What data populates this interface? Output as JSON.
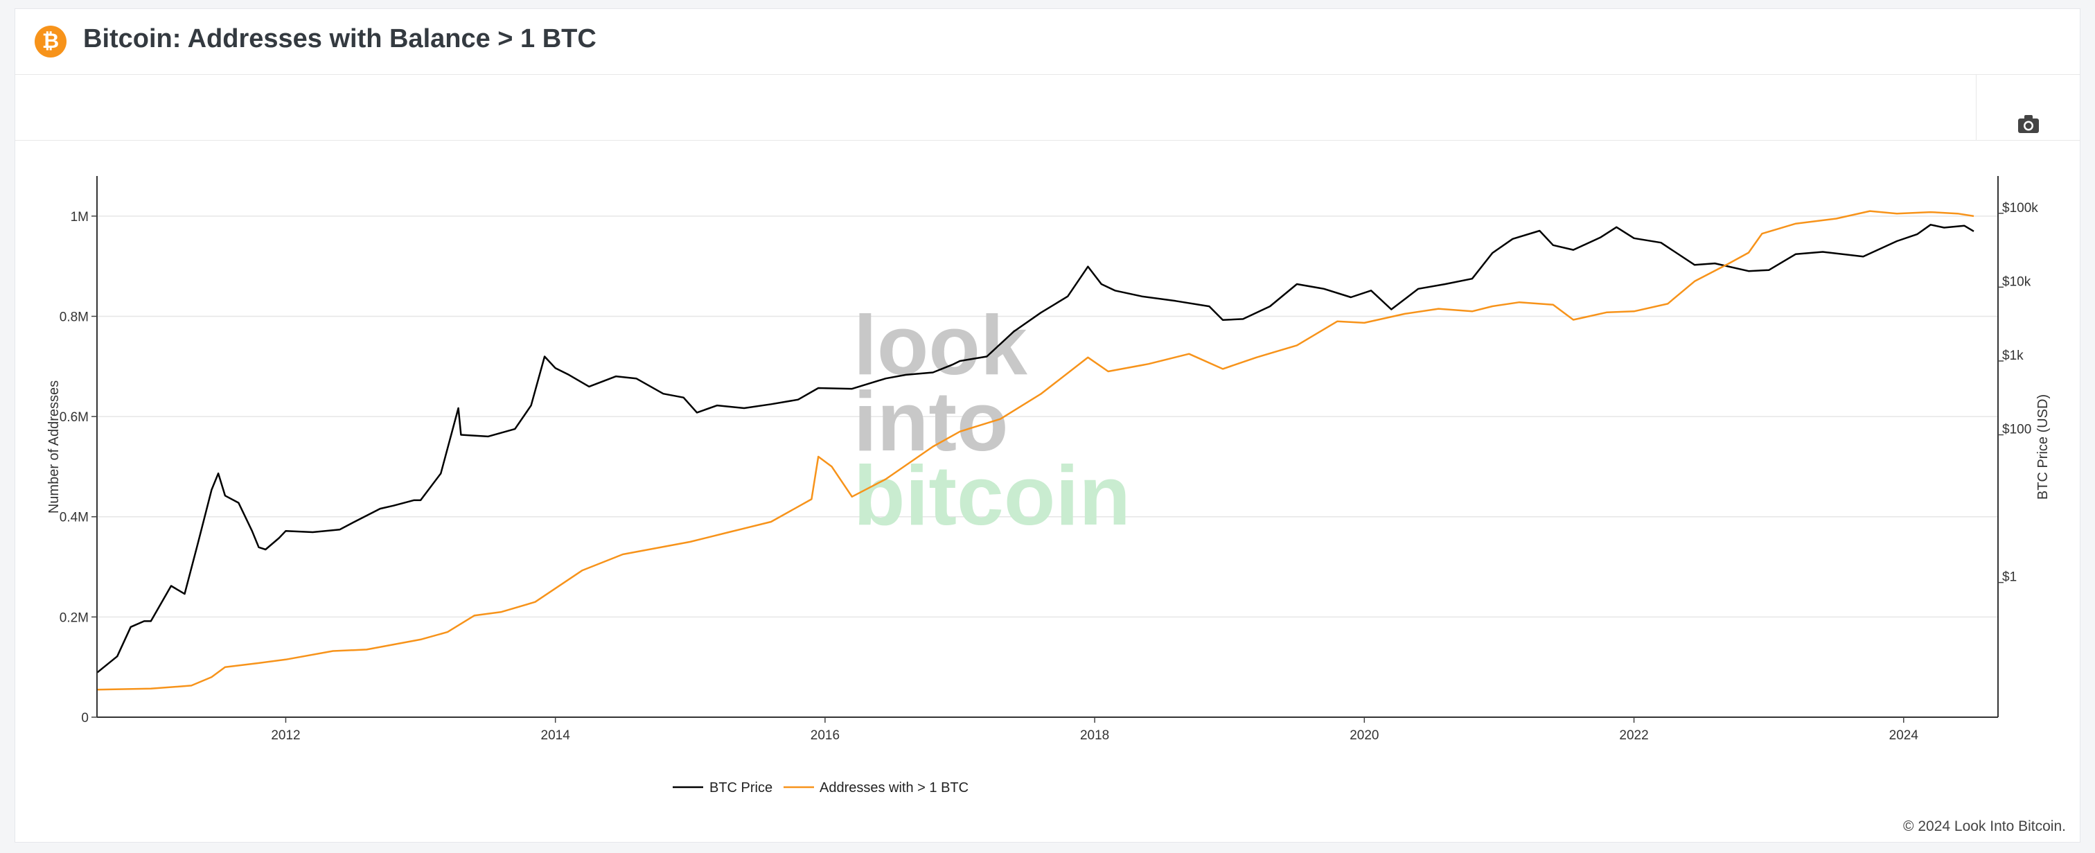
{
  "header": {
    "title": "Bitcoin: Addresses with Balance > 1 BTC",
    "logo_icon": "bitcoin-logo-icon",
    "logo_glyph": "₿"
  },
  "toolbar": {
    "camera_icon": "camera-icon"
  },
  "watermark": {
    "line1": "look",
    "line2": "into",
    "line3": "bitcoin"
  },
  "footer": {
    "credit": "© 2024 Look Into Bitcoin."
  },
  "colors": {
    "brand_orange": "#f7931a",
    "addresses_line": "#f7931a",
    "price_line": "#000000",
    "watermark_gray": "#c8c8c8",
    "watermark_green": "#c9ecd0"
  },
  "chart_data": {
    "type": "line",
    "left_axis": {
      "title": "Number of Addresses",
      "range": [
        0,
        1080000
      ],
      "ticks": [
        {
          "value": 0,
          "label": "0"
        },
        {
          "value": 200000,
          "label": "0.2M"
        },
        {
          "value": 400000,
          "label": "0.4M"
        },
        {
          "value": 600000,
          "label": "0.6M"
        },
        {
          "value": 800000,
          "label": "0.8M"
        },
        {
          "value": 1000000,
          "label": "1M"
        }
      ]
    },
    "right_axis": {
      "title": "BTC Price (USD)",
      "scale": "log",
      "range": [
        0.015,
        320000
      ],
      "ticks": [
        {
          "value": 1,
          "label": "$1"
        },
        {
          "value": 100,
          "label": "$100"
        },
        {
          "value": 1000,
          "label": "$1k"
        },
        {
          "value": 10000,
          "label": "$10k"
        },
        {
          "value": 100000,
          "label": "$100k"
        }
      ]
    },
    "x_axis": {
      "range": [
        2010.6,
        2024.7
      ],
      "ticks": [
        {
          "value": 2012,
          "label": "2012"
        },
        {
          "value": 2014,
          "label": "2014"
        },
        {
          "value": 2016,
          "label": "2016"
        },
        {
          "value": 2018,
          "label": "2018"
        },
        {
          "value": 2020,
          "label": "2020"
        },
        {
          "value": 2022,
          "label": "2022"
        },
        {
          "value": 2024,
          "label": "2024"
        }
      ]
    },
    "grid": true,
    "legend_position": "bottom-center",
    "series": [
      {
        "name": "BTC Price",
        "axis": "right",
        "color": "#000000",
        "points": [
          [
            2010.6,
            0.06
          ],
          [
            2010.75,
            0.1
          ],
          [
            2010.85,
            0.25
          ],
          [
            2010.95,
            0.3
          ],
          [
            2011.0,
            0.3
          ],
          [
            2011.15,
            0.9
          ],
          [
            2011.25,
            0.7
          ],
          [
            2011.35,
            3.5
          ],
          [
            2011.45,
            18
          ],
          [
            2011.5,
            30
          ],
          [
            2011.55,
            15
          ],
          [
            2011.65,
            12
          ],
          [
            2011.75,
            5
          ],
          [
            2011.8,
            3
          ],
          [
            2011.85,
            2.8
          ],
          [
            2011.95,
            4
          ],
          [
            2012.0,
            5
          ],
          [
            2012.2,
            4.8
          ],
          [
            2012.4,
            5.2
          ],
          [
            2012.5,
            6.5
          ],
          [
            2012.7,
            10
          ],
          [
            2012.8,
            11
          ],
          [
            2012.95,
            13
          ],
          [
            2013.0,
            13
          ],
          [
            2013.15,
            30
          ],
          [
            2013.28,
            230
          ],
          [
            2013.3,
            100
          ],
          [
            2013.5,
            95
          ],
          [
            2013.7,
            120
          ],
          [
            2013.82,
            250
          ],
          [
            2013.92,
            1150
          ],
          [
            2014.0,
            800
          ],
          [
            2014.1,
            650
          ],
          [
            2014.25,
            450
          ],
          [
            2014.45,
            620
          ],
          [
            2014.6,
            580
          ],
          [
            2014.8,
            360
          ],
          [
            2014.95,
            320
          ],
          [
            2015.05,
            200
          ],
          [
            2015.2,
            250
          ],
          [
            2015.4,
            230
          ],
          [
            2015.6,
            260
          ],
          [
            2015.8,
            300
          ],
          [
            2015.95,
            430
          ],
          [
            2016.2,
            420
          ],
          [
            2016.45,
            580
          ],
          [
            2016.6,
            650
          ],
          [
            2016.8,
            700
          ],
          [
            2016.95,
            900
          ],
          [
            2017.0,
            1000
          ],
          [
            2017.2,
            1150
          ],
          [
            2017.4,
            2500
          ],
          [
            2017.6,
            4500
          ],
          [
            2017.8,
            7500
          ],
          [
            2017.95,
            19000
          ],
          [
            2018.05,
            11000
          ],
          [
            2018.15,
            9000
          ],
          [
            2018.35,
            7500
          ],
          [
            2018.6,
            6500
          ],
          [
            2018.85,
            5500
          ],
          [
            2018.95,
            3600
          ],
          [
            2019.1,
            3700
          ],
          [
            2019.3,
            5500
          ],
          [
            2019.5,
            11000
          ],
          [
            2019.7,
            9500
          ],
          [
            2019.9,
            7300
          ],
          [
            2020.05,
            9000
          ],
          [
            2020.2,
            5000
          ],
          [
            2020.4,
            9500
          ],
          [
            2020.6,
            11000
          ],
          [
            2020.8,
            13000
          ],
          [
            2020.95,
            29000
          ],
          [
            2021.1,
            45000
          ],
          [
            2021.3,
            58000
          ],
          [
            2021.4,
            37000
          ],
          [
            2021.55,
            32000
          ],
          [
            2021.75,
            47000
          ],
          [
            2021.87,
            65000
          ],
          [
            2022.0,
            46000
          ],
          [
            2022.2,
            40000
          ],
          [
            2022.45,
            20000
          ],
          [
            2022.6,
            21000
          ],
          [
            2022.85,
            16500
          ],
          [
            2023.0,
            17000
          ],
          [
            2023.2,
            28000
          ],
          [
            2023.4,
            30000
          ],
          [
            2023.7,
            26000
          ],
          [
            2023.95,
            42000
          ],
          [
            2024.1,
            52000
          ],
          [
            2024.2,
            70000
          ],
          [
            2024.3,
            64000
          ],
          [
            2024.45,
            68000
          ],
          [
            2024.52,
            57000
          ]
        ]
      },
      {
        "name": "Addresses with > 1 BTC",
        "axis": "left",
        "color": "#f7931a",
        "points": [
          [
            2010.6,
            55000
          ],
          [
            2011.0,
            57000
          ],
          [
            2011.3,
            63000
          ],
          [
            2011.45,
            80000
          ],
          [
            2011.55,
            100000
          ],
          [
            2011.8,
            108000
          ],
          [
            2012.0,
            115000
          ],
          [
            2012.35,
            132000
          ],
          [
            2012.6,
            135000
          ],
          [
            2012.8,
            145000
          ],
          [
            2013.0,
            155000
          ],
          [
            2013.2,
            170000
          ],
          [
            2013.4,
            203000
          ],
          [
            2013.6,
            210000
          ],
          [
            2013.85,
            230000
          ],
          [
            2014.2,
            293000
          ],
          [
            2014.5,
            325000
          ],
          [
            2014.8,
            340000
          ],
          [
            2015.0,
            350000
          ],
          [
            2015.3,
            370000
          ],
          [
            2015.6,
            390000
          ],
          [
            2015.9,
            435000
          ],
          [
            2015.95,
            520000
          ],
          [
            2016.05,
            500000
          ],
          [
            2016.2,
            440000
          ],
          [
            2016.45,
            475000
          ],
          [
            2016.8,
            540000
          ],
          [
            2017.0,
            570000
          ],
          [
            2017.3,
            595000
          ],
          [
            2017.6,
            645000
          ],
          [
            2017.95,
            718000
          ],
          [
            2018.1,
            690000
          ],
          [
            2018.4,
            705000
          ],
          [
            2018.7,
            725000
          ],
          [
            2018.95,
            695000
          ],
          [
            2019.2,
            718000
          ],
          [
            2019.5,
            742000
          ],
          [
            2019.8,
            790000
          ],
          [
            2020.0,
            787000
          ],
          [
            2020.3,
            805000
          ],
          [
            2020.55,
            815000
          ],
          [
            2020.8,
            810000
          ],
          [
            2020.95,
            820000
          ],
          [
            2021.15,
            828000
          ],
          [
            2021.4,
            823000
          ],
          [
            2021.55,
            793000
          ],
          [
            2021.8,
            808000
          ],
          [
            2022.0,
            810000
          ],
          [
            2022.25,
            825000
          ],
          [
            2022.45,
            870000
          ],
          [
            2022.7,
            905000
          ],
          [
            2022.85,
            927000
          ],
          [
            2022.95,
            965000
          ],
          [
            2023.2,
            985000
          ],
          [
            2023.5,
            995000
          ],
          [
            2023.75,
            1010000
          ],
          [
            2023.95,
            1005000
          ],
          [
            2024.2,
            1008000
          ],
          [
            2024.4,
            1005000
          ],
          [
            2024.52,
            1000000
          ]
        ]
      }
    ]
  }
}
